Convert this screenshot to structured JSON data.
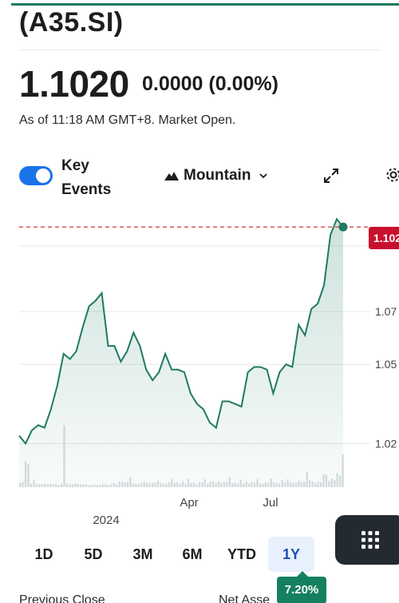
{
  "header": {
    "ticker": "(A35.SI)"
  },
  "quote": {
    "price": "1.1020",
    "change": "0.0000 (0.00%)",
    "as_of": "As of 11:18 AM GMT+8. Market Open."
  },
  "controls": {
    "key_events_label": "Key Events",
    "key_events_on": true,
    "chart_type_label": "Mountain",
    "icons": [
      "mountain-icon",
      "chevron-down-icon",
      "expand-icon",
      "gear-icon",
      "grid-icon"
    ]
  },
  "chart_data": {
    "type": "area",
    "y_ticks": [
      "1.07",
      "1.05",
      "1.02"
    ],
    "y_tick_values": [
      1.07,
      1.05,
      1.02
    ],
    "x_ticks": [
      "Apr",
      "Jul"
    ],
    "x_year_label": "2024",
    "ylim": [
      1.0035,
      1.1063
    ],
    "current_price_label": "1.102",
    "current_price": 1.102,
    "series": [
      {
        "values": [
          1.023,
          1.02,
          1.025,
          1.027,
          1.026,
          1.033,
          1.042,
          1.054,
          1.052,
          1.055,
          1.064,
          1.072,
          1.074,
          1.077,
          1.057,
          1.057,
          1.051,
          1.055,
          1.062,
          1.057,
          1.048,
          1.044,
          1.047,
          1.054,
          1.048,
          1.048,
          1.047,
          1.039,
          1.035,
          1.033,
          1.028,
          1.026,
          1.036,
          1.036,
          1.035,
          1.034,
          1.047,
          1.049,
          1.049,
          1.048,
          1.039,
          1.047,
          1.05,
          1.049,
          1.065,
          1.061,
          1.071,
          1.073,
          1.08,
          1.099,
          1.105,
          1.102
        ]
      }
    ],
    "volume_relative": [
      0.06,
      0.07,
      0.36,
      0.32,
      0.05,
      0.1,
      0.05,
      0.04,
      0.04,
      0.05,
      0.04,
      0.05,
      0.04,
      0.04,
      0.03,
      0.05,
      0.86,
      0.05,
      0.04,
      0.04,
      0.05,
      0.05,
      0.04,
      0.04,
      0.04,
      0.03,
      0.03,
      0.04,
      0.03,
      0.03,
      0.04,
      0.04,
      0.03,
      0.04,
      0.06,
      0.04,
      0.08,
      0.08,
      0.07,
      0.07,
      0.14,
      0.05,
      0.05,
      0.05,
      0.06,
      0.07,
      0.06,
      0.05,
      0.06,
      0.07,
      0.09,
      0.06,
      0.05,
      0.05,
      0.07,
      0.11,
      0.06,
      0.07,
      0.05,
      0.08,
      0.05,
      0.12,
      0.06,
      0.06,
      0.04,
      0.07,
      0.07,
      0.11,
      0.05,
      0.08,
      0.08,
      0.06,
      0.08,
      0.06,
      0.07,
      0.08,
      0.14,
      0.06,
      0.06,
      0.05,
      0.1,
      0.05,
      0.08,
      0.05,
      0.07,
      0.06,
      0.11,
      0.05,
      0.05,
      0.06,
      0.06,
      0.12,
      0.07,
      0.06,
      0.05,
      0.1,
      0.07,
      0.11,
      0.07,
      0.06,
      0.06,
      0.09,
      0.07,
      0.08,
      0.22,
      0.1,
      0.08,
      0.06,
      0.08,
      0.07,
      0.18,
      0.17,
      0.09,
      0.12,
      0.1,
      0.2,
      0.16,
      0.46
    ],
    "colors": {
      "line": "#1f7a63",
      "fill": "#1f7a63",
      "price_line": "#d33a3a",
      "badge": "#c8102e"
    }
  },
  "ranges": {
    "items": [
      "1D",
      "5D",
      "3M",
      "6M",
      "YTD",
      "1Y"
    ],
    "active": "1Y",
    "performance": "7.20%"
  },
  "stats": {
    "previous_close_label": "Previous Close",
    "net_assets_label": "Net Asse"
  }
}
